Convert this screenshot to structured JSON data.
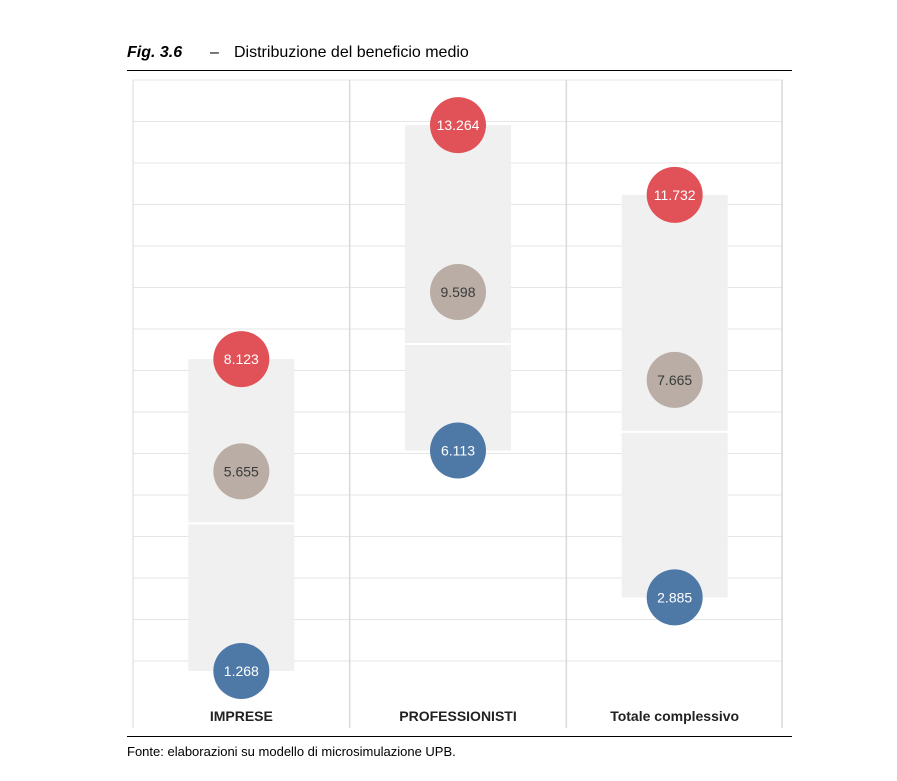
{
  "figure": {
    "label": "Fig. 3.6",
    "dash": "–",
    "title": "Distribuzione del beneficio medio",
    "source": "Fonte: elaborazioni su modello di microsimulazione UPB."
  },
  "chart_data": {
    "type": "scatter",
    "title": "Distribuzione del beneficio medio",
    "categories": [
      "IMPRESE",
      "PROFESSIONISTI",
      "Totale complessivo"
    ],
    "series": [
      {
        "values": [
          8.123,
          13.264,
          11.732
        ],
        "color": "#e05257"
      },
      {
        "values": [
          5.655,
          9.598,
          7.665
        ],
        "color": "#b9ada6"
      },
      {
        "values": [
          1.268,
          6.113,
          2.885
        ],
        "color": "#4e79a7"
      }
    ],
    "value_labels": [
      [
        "8.123",
        "13.264",
        "11.732"
      ],
      [
        "5.655",
        "9.598",
        "7.665"
      ],
      [
        "1.268",
        "6.113",
        "2.885"
      ]
    ],
    "ylim": [
      0,
      15
    ],
    "grid": true,
    "legend": "none",
    "colors": {
      "high": "#e05257",
      "mid": "#b9ada6",
      "low": "#4e79a7",
      "range_band": "#f0f0f0",
      "grid": "#e6e6e6"
    }
  }
}
